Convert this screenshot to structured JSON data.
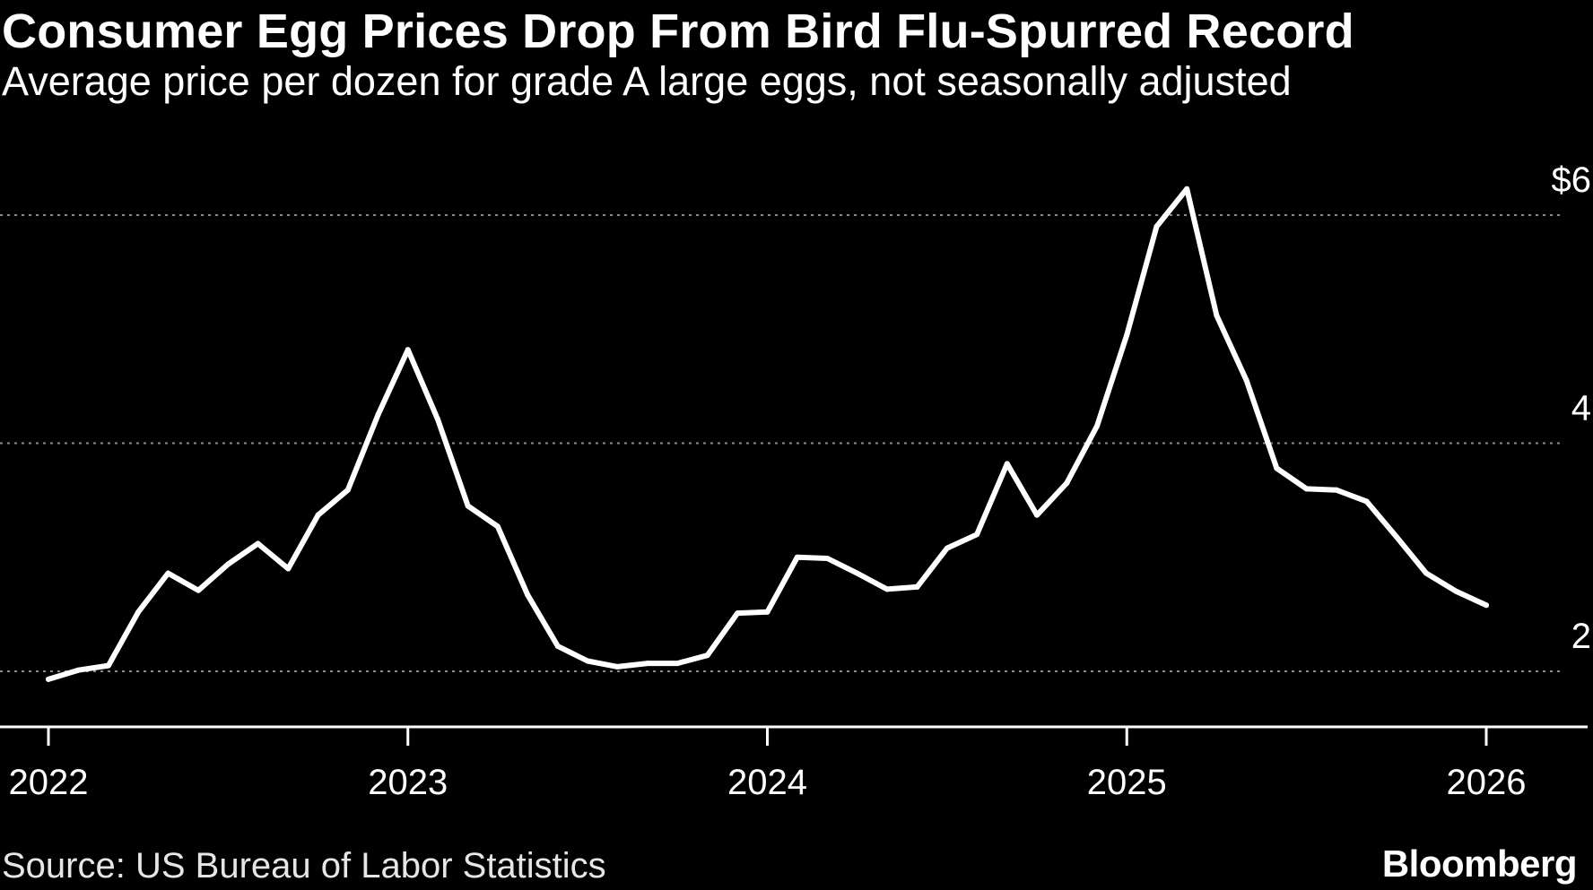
{
  "header": {
    "title": "Consumer Egg Prices Drop From Bird Flu-Spurred Record",
    "subtitle": "Average price per dozen for grade A large eggs, not seasonally adjusted"
  },
  "footer": {
    "source": "Source: US Bureau of Labor Statistics",
    "brand": "Bloomberg"
  },
  "colors": {
    "background": "#000000",
    "line": "#ffffff",
    "grid": "#8a8a8a"
  },
  "chart_data": {
    "type": "line",
    "title": "Consumer Egg Prices Drop From Bird Flu-Spurred Record",
    "subtitle": "Average price per dozen for grade A large eggs, not seasonally adjusted",
    "xlabel": "",
    "ylabel": "",
    "ylim": [
      1.52,
      6.35
    ],
    "yticks": [
      2,
      4,
      6
    ],
    "ytick_labels": [
      "2",
      "4",
      "$6"
    ],
    "xticks": [
      2022,
      2023,
      2024,
      2025,
      2026
    ],
    "xtick_labels": [
      "2022",
      "2023",
      "2024",
      "2025",
      "2026"
    ],
    "grid": "horizontal dotted",
    "series": [
      {
        "name": "Average price per dozen (USD)",
        "x": [
          2022.0,
          2022.083,
          2022.167,
          2022.25,
          2022.333,
          2022.417,
          2022.5,
          2022.583,
          2022.667,
          2022.75,
          2022.833,
          2022.917,
          2023.0,
          2023.083,
          2023.167,
          2023.25,
          2023.333,
          2023.417,
          2023.5,
          2023.583,
          2023.667,
          2023.75,
          2023.833,
          2023.917,
          2024.0,
          2024.083,
          2024.167,
          2024.25,
          2024.333,
          2024.417,
          2024.5,
          2024.583,
          2024.667,
          2024.75,
          2024.833,
          2024.917,
          2025.0,
          2025.083,
          2025.167,
          2025.25,
          2025.333,
          2025.417,
          2025.5,
          2025.583,
          2025.667,
          2025.75,
          2025.833,
          2025.917,
          2026.0
        ],
        "values": [
          1.93,
          2.01,
          2.05,
          2.52,
          2.86,
          2.71,
          2.94,
          3.12,
          2.9,
          3.37,
          3.59,
          4.25,
          4.82,
          4.21,
          3.45,
          3.27,
          2.67,
          2.22,
          2.09,
          2.04,
          2.07,
          2.07,
          2.14,
          2.51,
          2.52,
          3.0,
          2.99,
          2.86,
          2.72,
          2.74,
          3.08,
          3.2,
          3.82,
          3.37,
          3.65,
          4.15,
          4.95,
          5.9,
          6.23,
          5.12,
          4.55,
          3.78,
          3.6,
          3.59,
          3.49,
          3.18,
          2.86,
          2.7,
          2.58
        ]
      }
    ]
  }
}
